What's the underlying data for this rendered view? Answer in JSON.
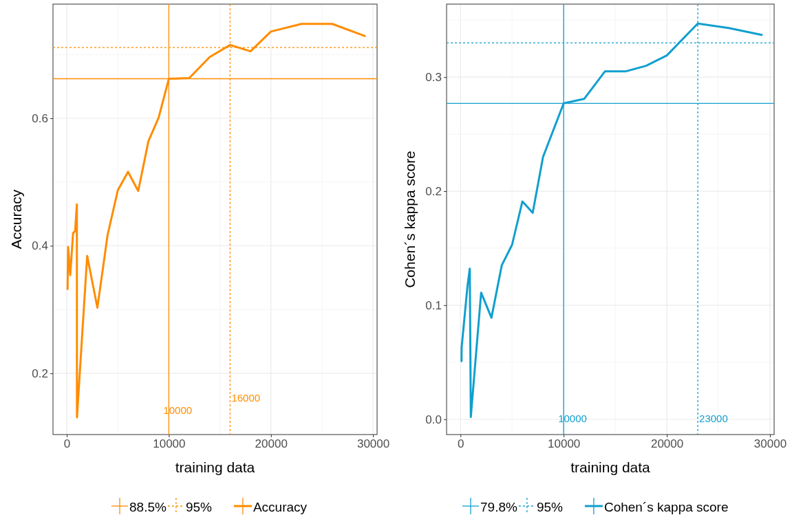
{
  "chart_data": [
    {
      "type": "line",
      "xlabel": "training data",
      "ylabel": "Accuracy",
      "xlim": [
        -1350,
        30400
      ],
      "ylim": [
        0.104,
        0.779
      ],
      "xticks": [
        0,
        10000,
        20000,
        30000
      ],
      "yticks": [
        0.2,
        0.4,
        0.6
      ],
      "grid": true,
      "legend": "bottom",
      "line_style": "solid",
      "marker": "none",
      "series": [
        {
          "name": "Accuracy",
          "color": "#ff8c00",
          "x": [
            80,
            130,
            340,
            620,
            820,
            990,
            1000,
            2000,
            3000,
            4000,
            5000,
            6000,
            7000,
            8000,
            9000,
            10000,
            12000,
            14000,
            16000,
            18000,
            20000,
            23000,
            26000,
            29200
          ],
          "values": [
            0.332,
            0.398,
            0.354,
            0.42,
            0.423,
            0.465,
            0.131,
            0.384,
            0.303,
            0.417,
            0.487,
            0.516,
            0.486,
            0.564,
            0.601,
            0.662,
            0.663,
            0.696,
            0.715,
            0.705,
            0.736,
            0.748,
            0.748,
            0.729
          ]
        }
      ],
      "ref_lines": [
        {
          "axis": "y",
          "value": 0.662,
          "color": "#ff8c00",
          "line_style": "solid"
        },
        {
          "axis": "y",
          "value": 0.711,
          "color": "#ff8c00",
          "line_style": "dashed"
        },
        {
          "axis": "x",
          "value": 10000,
          "label": "10000",
          "color": "#ff8c00",
          "line_style": "solid"
        },
        {
          "axis": "x",
          "value": 16000,
          "label": "16000",
          "color": "#ff8c00",
          "line_style": "dashed"
        }
      ],
      "annotations": [
        "88.5%",
        "95%"
      ]
    },
    {
      "type": "line",
      "xlabel": "training data",
      "ylabel": "Cohen´s kappa score",
      "xlim": [
        -1350,
        30400
      ],
      "ylim": [
        -0.0134,
        0.364
      ],
      "xticks": [
        0,
        10000,
        20000,
        30000
      ],
      "yticks": [
        {
          "value": 0,
          "label": "0.0"
        },
        0.1,
        0.2,
        0.3
      ],
      "grid": true,
      "legend": "bottom",
      "line_style": "solid",
      "marker": "none",
      "series": [
        {
          "name": "Cohen´s kappa score",
          "color": "#109fcf",
          "x": [
            100,
            110,
            680,
            900,
            1000,
            2000,
            3000,
            4000,
            5000,
            6000,
            7000,
            8000,
            10000,
            12000,
            14000,
            16000,
            18000,
            20000,
            23000,
            26000,
            29200
          ],
          "values": [
            0.051,
            0.063,
            0.117,
            0.132,
            0.002,
            0.111,
            0.089,
            0.135,
            0.153,
            0.191,
            0.181,
            0.23,
            0.277,
            0.281,
            0.305,
            0.305,
            0.31,
            0.319,
            0.347,
            0.343,
            0.337
          ]
        }
      ],
      "ref_lines": [
        {
          "axis": "y",
          "value": 0.277,
          "color": "#109fcf",
          "line_style": "solid"
        },
        {
          "axis": "y",
          "value": 0.33,
          "color": "#109fcf",
          "line_style": "dashed"
        },
        {
          "axis": "x",
          "value": 10000,
          "label": "10000",
          "color": "#109fcf",
          "line_style": "solid"
        },
        {
          "axis": "x",
          "value": 23000,
          "label": "23000",
          "color": "#109fcf",
          "line_style": "dashed"
        }
      ],
      "annotations": [
        "79.8%",
        "95%"
      ]
    }
  ]
}
